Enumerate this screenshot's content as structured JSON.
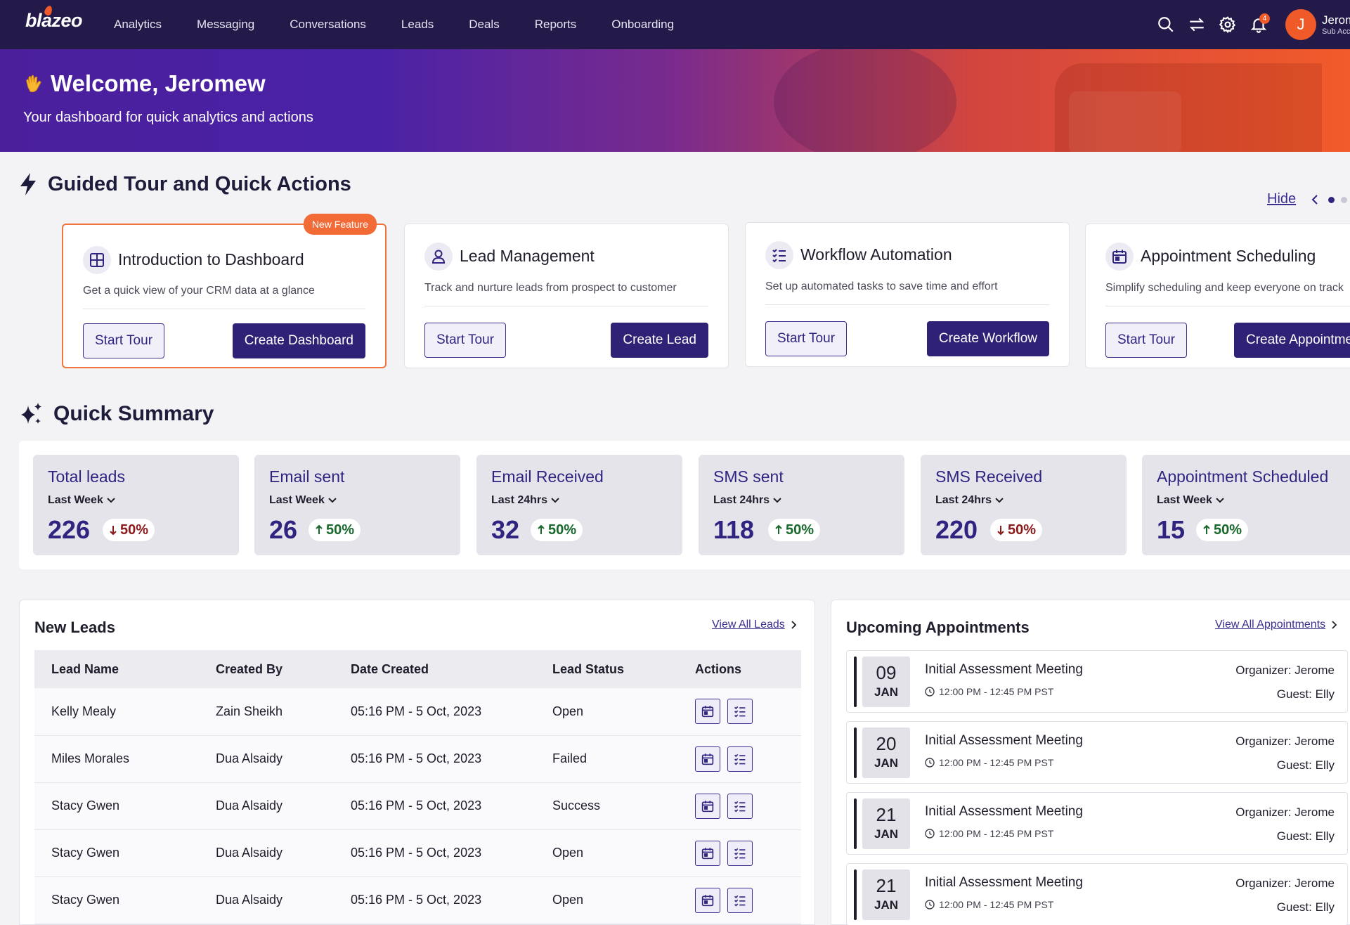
{
  "nav": {
    "logo": "blazeo",
    "links": [
      "Analytics",
      "Messaging",
      "Conversations",
      "Leads",
      "Deals",
      "Reports",
      "Onboarding"
    ],
    "notifications_count": "4",
    "user_initial": "J",
    "user_name": "Jerome",
    "user_role": "Sub Account"
  },
  "hero": {
    "welcome": "Welcome, Jeromew",
    "subtitle": "Your dashboard for quick analytics and actions"
  },
  "tour": {
    "heading": "Guided Tour and Quick Actions",
    "hide_label": "Hide",
    "cards": [
      {
        "title": "Introduction to Dashboard",
        "desc": "Get a quick view of your CRM data at a glance",
        "secondary": "Start Tour",
        "primary": "Create Dashboard",
        "badge": "New Feature",
        "icon": "grid-icon"
      },
      {
        "title": "Lead Management",
        "desc": "Track and nurture leads from prospect to customer",
        "secondary": "Start Tour",
        "primary": "Create Lead",
        "icon": "user-icon"
      },
      {
        "title": "Workflow Automation",
        "desc": "Set up automated tasks to save time and effort",
        "secondary": "Start Tour",
        "primary": "Create Workflow",
        "icon": "checklist-icon"
      },
      {
        "title": "Appointment Scheduling",
        "desc": "Simplify scheduling and keep everyone on track",
        "secondary": "Start Tour",
        "primary": "Create Appointment",
        "icon": "calendar-icon"
      }
    ]
  },
  "summary": {
    "heading": "Quick Summary",
    "stats": [
      {
        "title": "Total leads",
        "period": "Last Week",
        "value": "226",
        "change": "50%",
        "direction": "down"
      },
      {
        "title": "Email sent",
        "period": "Last Week",
        "value": "26",
        "change": "50%",
        "direction": "up"
      },
      {
        "title": "Email Received",
        "period": "Last 24hrs",
        "value": "32",
        "change": "50%",
        "direction": "up"
      },
      {
        "title": "SMS sent",
        "period": "Last 24hrs",
        "value": "118",
        "change": "50%",
        "direction": "up"
      },
      {
        "title": "SMS Received",
        "period": "Last 24hrs",
        "value": "220",
        "change": "50%",
        "direction": "down"
      },
      {
        "title": "Appointment Scheduled",
        "period": "Last Week",
        "value": "15",
        "change": "50%",
        "direction": "up"
      }
    ]
  },
  "leads": {
    "title": "New Leads",
    "view_all": "View All Leads",
    "columns": [
      "Lead Name",
      "Created By",
      "Date Created",
      "Lead Status",
      "Actions"
    ],
    "rows": [
      {
        "name": "Kelly Mealy",
        "created_by": "Zain Sheikh",
        "date": "05:16 PM - 5 Oct, 2023",
        "status": "Open"
      },
      {
        "name": "Miles Morales",
        "created_by": "Dua Alsaidy",
        "date": "05:16 PM - 5 Oct, 2023",
        "status": "Failed"
      },
      {
        "name": "Stacy Gwen",
        "created_by": "Dua Alsaidy",
        "date": "05:16 PM - 5 Oct, 2023",
        "status": "Success"
      },
      {
        "name": "Stacy Gwen",
        "created_by": "Dua Alsaidy",
        "date": "05:16 PM - 5 Oct, 2023",
        "status": "Open"
      },
      {
        "name": "Stacy Gwen",
        "created_by": "Dua Alsaidy",
        "date": "05:16 PM - 5 Oct, 2023",
        "status": "Open"
      }
    ]
  },
  "appointments": {
    "title": "Upcoming Appointments",
    "view_all": "View All Appointments",
    "items": [
      {
        "day": "09",
        "month": "JAN",
        "title": "Initial Assessment Meeting",
        "time": "12:00 PM - 12:45 PM PST",
        "organizer": "Organizer: Jerome",
        "guest": "Guest: Elly"
      },
      {
        "day": "20",
        "month": "JAN",
        "title": "Initial Assessment Meeting",
        "time": "12:00 PM - 12:45 PM PST",
        "organizer": "Organizer: Jerome",
        "guest": "Guest: Elly"
      },
      {
        "day": "21",
        "month": "JAN",
        "title": "Initial Assessment Meeting",
        "time": "12:00 PM - 12:45 PM PST",
        "organizer": "Organizer: Jerome",
        "guest": "Guest: Elly"
      },
      {
        "day": "21",
        "month": "JAN",
        "title": "Initial Assessment Meeting",
        "time": "12:00 PM - 12:45 PM PST",
        "organizer": "Organizer: Jerome",
        "guest": "Guest: Elly"
      }
    ]
  },
  "colors": {
    "nav_bg": "#231a49",
    "accent": "#2f2581",
    "brand_orange": "#f05a28",
    "down": "#8b1a1a",
    "up": "#17682b"
  }
}
